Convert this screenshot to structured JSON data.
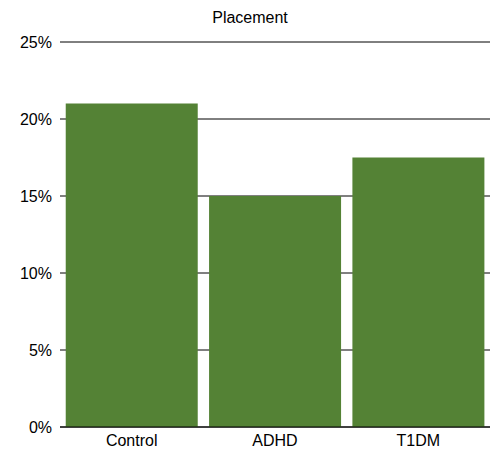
{
  "chart_data": {
    "type": "bar",
    "title": "Placement",
    "categories": [
      "Control",
      "ADHD",
      "T1DM"
    ],
    "values": [
      21,
      15,
      17.5
    ],
    "color": "#548235",
    "ylim": [
      0,
      25
    ],
    "yticks": [
      {
        "value": 0,
        "label": "0%"
      },
      {
        "value": 5,
        "label": "5%"
      },
      {
        "value": 10,
        "label": "10%"
      },
      {
        "value": 15,
        "label": "15%"
      },
      {
        "value": 20,
        "label": "20%"
      },
      {
        "value": 25,
        "label": "25%"
      }
    ],
    "grid": true
  }
}
